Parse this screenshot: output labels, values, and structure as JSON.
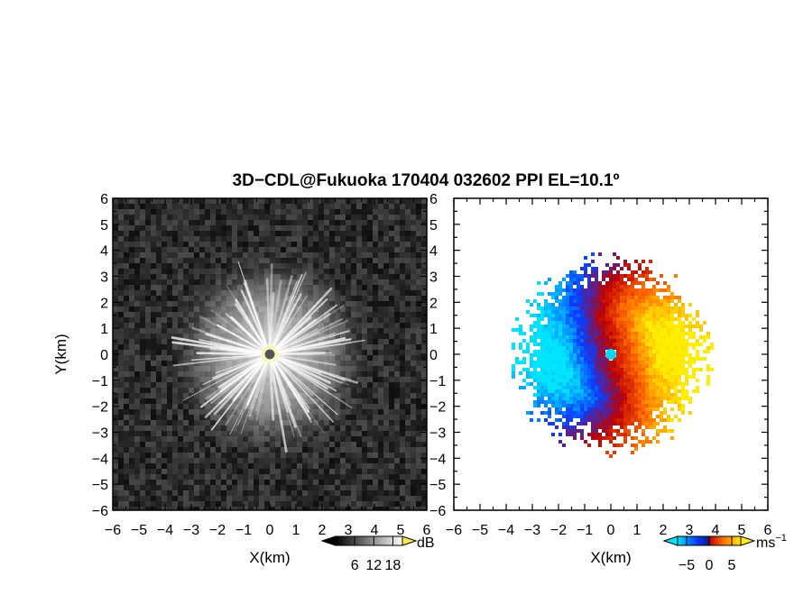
{
  "figure": {
    "title": "3D−CDL@Fukuoka 170404 032602 PPI EL=10.1º"
  },
  "chart_data": [
    {
      "type": "heatmap",
      "panel": "left",
      "description_kind": "radar PPI reflectivity / SNR",
      "xlabel": "X(km)",
      "ylabel": "Y(km)",
      "xlim": [
        -6,
        6
      ],
      "ylim": [
        -6,
        6
      ],
      "xticks": [
        "−6",
        "−5",
        "−4",
        "−3",
        "−2",
        "−1",
        "0",
        "1",
        "2",
        "3",
        "4",
        "5",
        "6"
      ],
      "yticks": [
        "6",
        "5",
        "4",
        "3",
        "2",
        "1",
        "0",
        "−1",
        "−2",
        "−3",
        "−4",
        "−5",
        "−6"
      ],
      "echo_radius_km": 3.6,
      "background": "noise",
      "colorbar": {
        "unit": "dB",
        "ticks": [
          "6",
          "12",
          "18"
        ],
        "tick_values": [
          6,
          12,
          18
        ],
        "range": [
          0,
          21
        ],
        "colors": [
          "#000000",
          "#ffffff"
        ],
        "extend_high_color": "#ffe94d"
      }
    },
    {
      "type": "heatmap",
      "panel": "right",
      "description_kind": "radar PPI Doppler velocity",
      "xlabel": "X(km)",
      "ylabel": "",
      "xlim": [
        -6,
        6
      ],
      "ylim": [
        -6,
        6
      ],
      "xticks": [
        "−6",
        "−5",
        "−4",
        "−3",
        "−2",
        "−1",
        "0",
        "1",
        "2",
        "3",
        "4",
        "5",
        "6"
      ],
      "yticks": [
        "6",
        "5",
        "4",
        "3",
        "2",
        "1",
        "0",
        "−1",
        "−2",
        "−3",
        "−4",
        "−5",
        "−6"
      ],
      "echo_radius_km": 3.4,
      "negative_side": "west",
      "colorbar": {
        "unit": "ms",
        "unit_exponent": "−1",
        "ticks": [
          "−5",
          "0",
          "5"
        ],
        "tick_values": [
          -5,
          0,
          5
        ],
        "range": [
          -7,
          7
        ],
        "colors": [
          "#00e5ff",
          "#0a3cff",
          "#c00000",
          "#ff6a00",
          "#ffee00"
        ]
      }
    }
  ]
}
